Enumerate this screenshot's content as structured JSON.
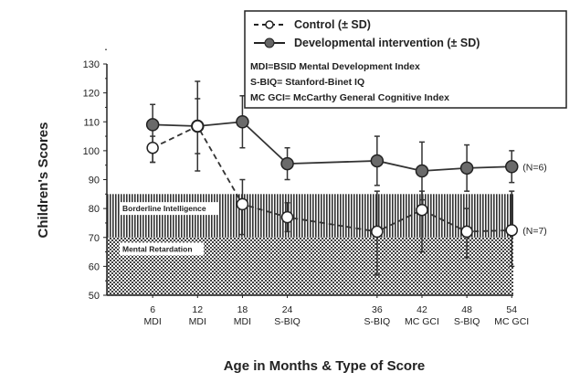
{
  "chart_data": {
    "type": "line",
    "title": "",
    "xlabel": "Age in Months & Type of Score",
    "ylabel": "Children's Scores",
    "ylim": [
      50,
      130
    ],
    "yticks": [
      50,
      60,
      70,
      80,
      90,
      100,
      110,
      120,
      130
    ],
    "x": [
      6,
      12,
      18,
      24,
      36,
      42,
      48,
      54
    ],
    "xtick_labels": [
      [
        "6",
        "MDI"
      ],
      [
        "12",
        "MDI"
      ],
      [
        "18",
        "MDI"
      ],
      [
        "24",
        "S-BIQ"
      ],
      [
        "36",
        "S-BIQ"
      ],
      [
        "42",
        "MC GCI"
      ],
      [
        "48",
        "S-BIQ"
      ],
      [
        "54",
        "MC GCI"
      ]
    ],
    "bands": [
      {
        "label": "Borderline Intelligence",
        "range": [
          70,
          85
        ]
      },
      {
        "label": "Mental Retardation",
        "range": [
          50,
          70
        ]
      }
    ],
    "series": [
      {
        "name": "Developmental intervention (± SD)",
        "marker": "filled",
        "values": [
          109,
          108.5,
          110,
          95.5,
          96.5,
          93,
          94,
          94.5
        ],
        "sd_low": [
          96,
          99,
          101,
          90,
          88,
          83,
          86,
          89
        ],
        "sd_high": [
          116,
          118,
          119,
          101,
          105,
          103,
          102,
          100
        ],
        "end_label": "(N=6)"
      },
      {
        "name": "Control (± SD)",
        "marker": "open",
        "values": [
          101,
          108.5,
          81.5,
          77,
          72,
          79.5,
          72,
          72.5
        ],
        "sd_low": [
          96,
          93,
          71,
          72,
          57,
          65,
          63,
          60
        ],
        "sd_high": [
          105,
          124,
          90,
          82,
          86,
          86,
          80,
          86
        ],
        "end_label": "(N=7)"
      }
    ],
    "legend": {
      "position": "top-right",
      "entries": [
        "Control (± SD)",
        "Developmental intervention (± SD)"
      ],
      "notes": [
        "MDI=BSID  Mental Development Index",
        "S-BIQ=  Stanford-Binet IQ",
        "MC GCI=  McCarthy General Cognitive Index"
      ]
    }
  }
}
